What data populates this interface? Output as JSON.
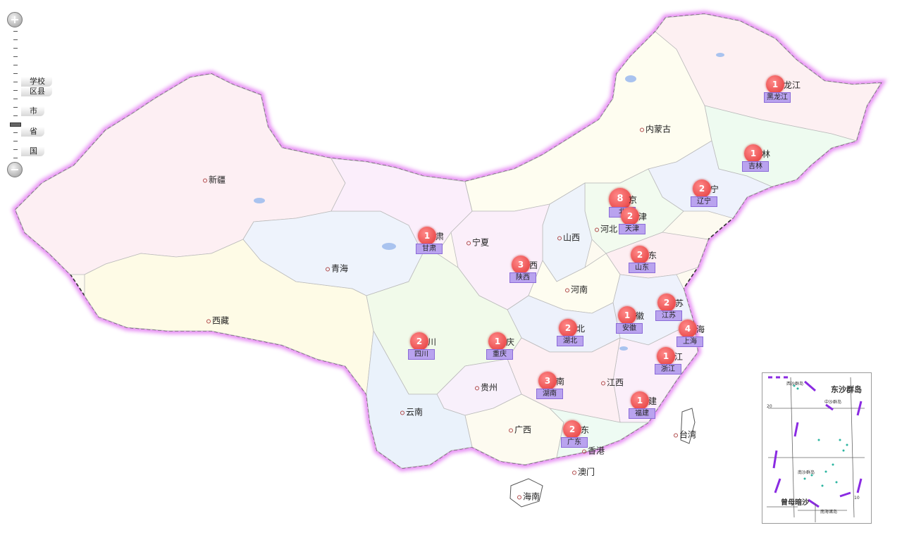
{
  "zoom": {
    "in_label": "+",
    "out_label": "−",
    "levels": [
      "学校",
      "区县",
      "市",
      "省",
      "国"
    ]
  },
  "provinces": [
    {
      "id": "xinjiang",
      "label": "新疆"
    },
    {
      "id": "xizang",
      "label": "西藏"
    },
    {
      "id": "qinghai",
      "label": "青海"
    },
    {
      "id": "neimenggu",
      "label": "内蒙古"
    },
    {
      "id": "ningxia",
      "label": "宁夏"
    },
    {
      "id": "shanxi",
      "label": "山西"
    },
    {
      "id": "hebei",
      "label": "河北"
    },
    {
      "id": "henan",
      "label": "河南"
    },
    {
      "id": "guizhou",
      "label": "贵州"
    },
    {
      "id": "yunnan",
      "label": "云南"
    },
    {
      "id": "guangxi",
      "label": "广西"
    },
    {
      "id": "jiangxi",
      "label": "江西"
    },
    {
      "id": "taiwan",
      "label": "台湾"
    },
    {
      "id": "xianggang",
      "label": "香港"
    },
    {
      "id": "aomen",
      "label": "澳门"
    },
    {
      "id": "hainan",
      "label": "海南"
    }
  ],
  "markers": [
    {
      "id": "heilongjiang",
      "count": "1",
      "tag": "黑龙江",
      "tail": "龙江"
    },
    {
      "id": "jilin",
      "count": "1",
      "tag": "吉林",
      "tail": "林"
    },
    {
      "id": "liaoning",
      "count": "2",
      "tag": "辽宁",
      "tail": "宁"
    },
    {
      "id": "beijing",
      "count": "8",
      "tag": "北",
      "tail": "京"
    },
    {
      "id": "tianjin",
      "count": "2",
      "tag": "天津",
      "tail": "津"
    },
    {
      "id": "shandong",
      "count": "2",
      "tag": "山东",
      "tail": "东"
    },
    {
      "id": "gansu",
      "count": "1",
      "tag": "甘肃",
      "tail": "肃"
    },
    {
      "id": "shaanxi",
      "count": "3",
      "tag": "陕西",
      "tail": "西"
    },
    {
      "id": "jiangsu",
      "count": "2",
      "tag": "江苏",
      "tail": "苏"
    },
    {
      "id": "anhui",
      "count": "1",
      "tag": "安徽",
      "tail": "徽"
    },
    {
      "id": "shanghai",
      "count": "4",
      "tag": "上海",
      "tail": "海"
    },
    {
      "id": "hubei",
      "count": "2",
      "tag": "湖北",
      "tail": "北"
    },
    {
      "id": "sichuan",
      "count": "2",
      "tag": "四川",
      "tail": "川"
    },
    {
      "id": "chongqing",
      "count": "1",
      "tag": "重庆",
      "tail": "庆"
    },
    {
      "id": "zhejiang",
      "count": "1",
      "tag": "浙江",
      "tail": "江"
    },
    {
      "id": "hunan",
      "count": "3",
      "tag": "湖南",
      "tail": "南"
    },
    {
      "id": "fujian",
      "count": "1",
      "tag": "福建",
      "tail": "建"
    },
    {
      "id": "guangdong",
      "count": "2",
      "tag": "广东",
      "tail": "东"
    }
  ],
  "inset": {
    "title": "东沙群岛",
    "label_top": "西沙群岛",
    "label_zhongsha": "中沙群岛",
    "label_nansha": "南沙群岛",
    "label_zengmu": "曾母暗沙",
    "label_small": "南海诸岛",
    "lat_20": "20",
    "lat_10": "10"
  },
  "colors": {
    "border_glow": "#e070f0",
    "marker": "#e23535",
    "tag": "#b9a3ef"
  }
}
